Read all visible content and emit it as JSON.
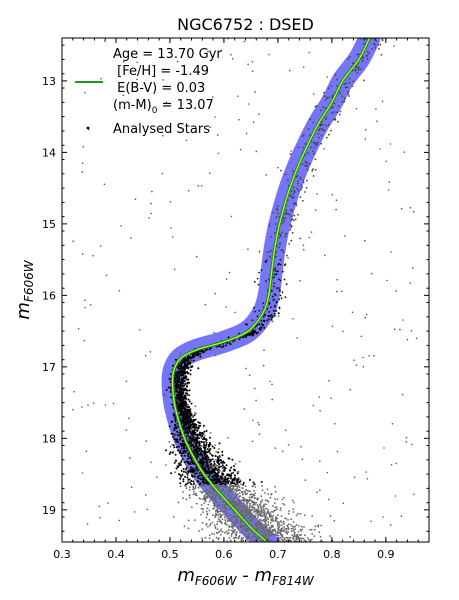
{
  "chart_data": {
    "type": "scatter",
    "title": "NGC6752 : DSED",
    "xlabel": {
      "main": "m",
      "sub1": "F606W",
      "mid": " - m",
      "sub2": "F814W"
    },
    "ylabel": {
      "main": "m",
      "sub": "F606W"
    },
    "xlim": [
      0.3,
      0.98
    ],
    "ylim": [
      19.45,
      12.4
    ],
    "y_inverted": true,
    "x_ticks": [
      "0.3",
      "0.4",
      "0.5",
      "0.6",
      "0.7",
      "0.8",
      "0.9"
    ],
    "x_tick_values": [
      0.3,
      0.4,
      0.5,
      0.6,
      0.7,
      0.8,
      0.9
    ],
    "y_ticks": [
      "13",
      "14",
      "15",
      "16",
      "17",
      "18",
      "19"
    ],
    "y_tick_values": [
      13,
      14,
      15,
      16,
      17,
      18,
      19
    ],
    "grid": false,
    "legend_position": "top-left",
    "legend": {
      "isochrone_lines": [
        "Age = 13.70 Gyr",
        " [Fe/H] = -1.49",
        " E(B-V) = 0.03"
      ],
      "modulus_main": "(m-M)",
      "modulus_sub": "0",
      "modulus_value": " = 13.07",
      "stars_label": "Analysed Stars"
    },
    "isochrone": {
      "age_gyr": 13.7,
      "feh": -1.49,
      "ebv": 0.03,
      "distance_modulus": 13.07,
      "line_colors": {
        "core": "#b6ff3a",
        "edge": "#1a8c1a"
      },
      "envelope_color": "#3b3bf2",
      "points": [
        [
          0.87,
          12.4
        ],
        [
          0.85,
          12.7
        ],
        [
          0.82,
          13.0
        ],
        [
          0.8,
          13.3
        ],
        [
          0.775,
          13.6
        ],
        [
          0.755,
          13.9
        ],
        [
          0.737,
          14.2
        ],
        [
          0.722,
          14.5
        ],
        [
          0.71,
          14.8
        ],
        [
          0.7,
          15.1
        ],
        [
          0.693,
          15.4
        ],
        [
          0.688,
          15.7
        ],
        [
          0.683,
          16.0
        ],
        [
          0.672,
          16.25
        ],
        [
          0.645,
          16.5
        ],
        [
          0.6,
          16.65
        ],
        [
          0.55,
          16.76
        ],
        [
          0.52,
          16.88
        ],
        [
          0.507,
          17.05
        ],
        [
          0.505,
          17.25
        ],
        [
          0.508,
          17.5
        ],
        [
          0.516,
          17.75
        ],
        [
          0.527,
          18.0
        ],
        [
          0.543,
          18.25
        ],
        [
          0.563,
          18.5
        ],
        [
          0.59,
          18.75
        ],
        [
          0.62,
          19.0
        ],
        [
          0.65,
          19.25
        ],
        [
          0.68,
          19.45
        ]
      ]
    },
    "analysed_stars": {
      "count_approx": 3800,
      "colors": [
        "#000000",
        "#666666"
      ]
    }
  }
}
